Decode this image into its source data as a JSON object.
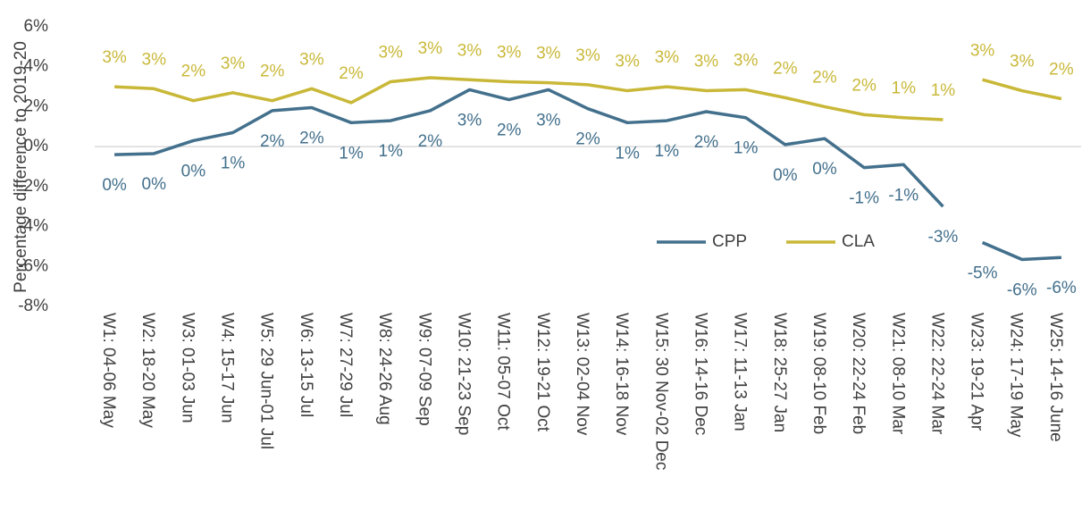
{
  "chart_data": {
    "type": "line",
    "ylabel": "Percentage difference to 2019-20",
    "categories": [
      "W1: 04-06 May",
      "W2: 18-20 May",
      "W3: 01-03 Jun",
      "W4: 15-17 Jun",
      "W5: 29 Jun-01 Jul",
      "W6: 13-15 Jul",
      "W7: 27-29 Jul",
      "W8: 24-26 Aug",
      "W9: 07-09 Sep",
      "W10: 21-23 Sep",
      "W11: 05-07 Oct",
      "W12: 19-21 Oct",
      "W13: 02-04 Nov",
      "W14: 16-18 Nov",
      "W15: 30 Nov-02 Dec",
      "W16: 14-16 Dec",
      "W17: 11-13 Jan",
      "W18: 25-27 Jan",
      "W19: 08-10 Feb",
      "W20: 22-24 Feb",
      "W21: 08-10 Mar",
      "W22: 22-24 Mar",
      "W23: 19-21 Apr",
      "W24: 17-19 May",
      "W25: 14-16 June"
    ],
    "line_breaks_before": [
      22
    ],
    "series": [
      {
        "name": "CPP",
        "color": "#43708c",
        "values": [
          -0.4,
          -0.35,
          0.3,
          0.7,
          1.8,
          1.95,
          1.2,
          1.3,
          1.8,
          2.85,
          2.35,
          2.85,
          1.9,
          1.2,
          1.3,
          1.75,
          1.45,
          0.1,
          0.4,
          -1.05,
          -0.9,
          -3.0,
          -4.8,
          -5.65,
          -5.55
        ],
        "value_labels": [
          "0%",
          "0%",
          "0%",
          "1%",
          "2%",
          "2%",
          "1%",
          "1%",
          "2%",
          "3%",
          "2%",
          "3%",
          "2%",
          "1%",
          "1%",
          "2%",
          "1%",
          "0%",
          "0%",
          "-1%",
          "-1%",
          "-3%",
          "-5%",
          "-6%",
          "-6%"
        ]
      },
      {
        "name": "CLA",
        "color": "#c9b838",
        "values": [
          3.0,
          2.9,
          2.3,
          2.7,
          2.3,
          2.9,
          2.2,
          3.25,
          3.45,
          3.35,
          3.25,
          3.2,
          3.1,
          2.8,
          3.0,
          2.8,
          2.85,
          2.45,
          2.0,
          1.6,
          1.45,
          1.35,
          3.35,
          2.8,
          2.4
        ],
        "value_labels": [
          "3%",
          "3%",
          "2%",
          "3%",
          "2%",
          "3%",
          "2%",
          "3%",
          "3%",
          "3%",
          "3%",
          "3%",
          "3%",
          "3%",
          "3%",
          "3%",
          "3%",
          "2%",
          "2%",
          "2%",
          "1%",
          "1%",
          "3%",
          "3%",
          "2%"
        ]
      }
    ],
    "ylim": [
      -8,
      6
    ],
    "yticks": [
      {
        "value": -8,
        "label": "-8%"
      },
      {
        "value": -6,
        "label": "-6%"
      },
      {
        "value": -4,
        "label": "-4%"
      },
      {
        "value": -2,
        "label": "-2%"
      },
      {
        "value": 0,
        "label": "0%"
      },
      {
        "value": 2,
        "label": "2%"
      },
      {
        "value": 4,
        "label": "4%"
      },
      {
        "value": 6,
        "label": "6%"
      }
    ],
    "grid": false,
    "legend": "center-right"
  }
}
